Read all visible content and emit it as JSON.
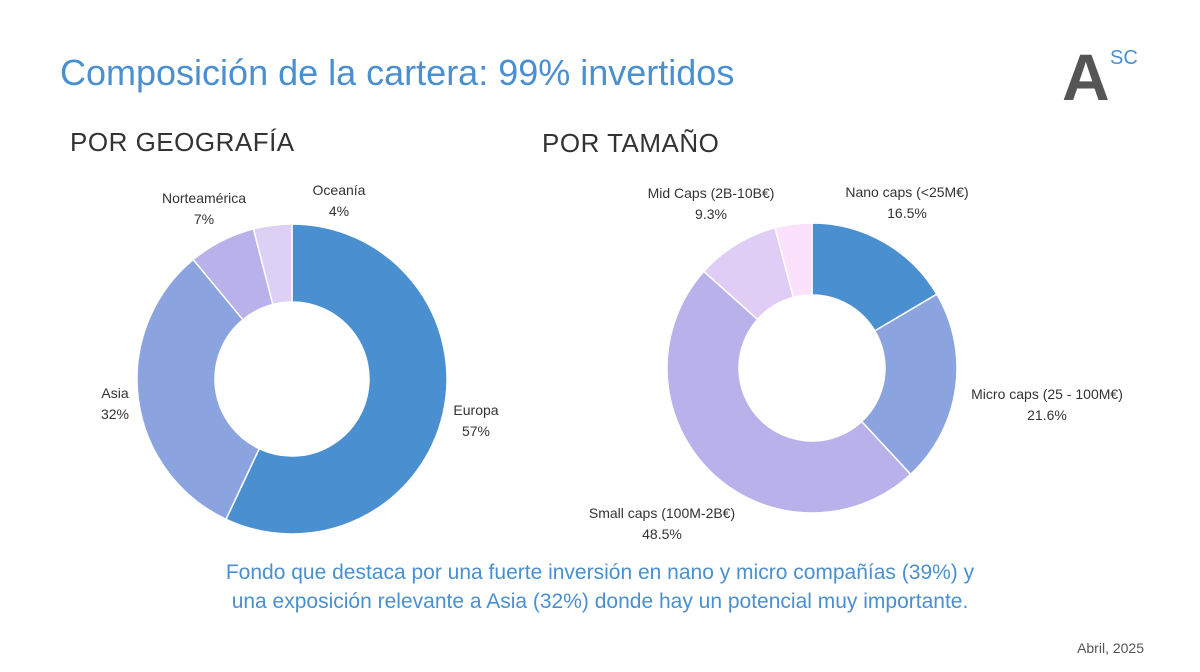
{
  "header": {
    "title": "Composición de la cartera: 99% invertidos",
    "logo_text": "A",
    "logo_sup": "SC"
  },
  "geography": {
    "heading": "POR GEOGRAFÍA"
  },
  "size": {
    "heading": "POR TAMAÑO"
  },
  "chart_data": [
    {
      "type": "pie",
      "variant": "donut",
      "title": "POR GEOGRAFÍA",
      "slices": [
        {
          "label": "Europa",
          "value": 57,
          "value_text": "57%",
          "color": "#4a8fd0"
        },
        {
          "label": "Asia",
          "value": 32,
          "value_text": "32%",
          "color": "#8ba4e0"
        },
        {
          "label": "Norteamérica",
          "value": 7,
          "value_text": "7%",
          "color": "#b8b1ea"
        },
        {
          "label": "Oceanía",
          "value": 4,
          "value_text": "4%",
          "color": "#ddd0f5"
        }
      ]
    },
    {
      "type": "pie",
      "variant": "donut",
      "title": "POR TAMAÑO",
      "slices": [
        {
          "label": "Nano caps (<25M€)",
          "value": 16.5,
          "value_text": "16.5%",
          "color": "#4a8fd0"
        },
        {
          "label": "Micro caps (25 - 100M€)",
          "value": 21.6,
          "value_text": "21.6%",
          "color": "#8ba4e0"
        },
        {
          "label": "Small caps (100M-2B€)",
          "value": 48.5,
          "value_text": "48.5%",
          "color": "#b8b1ea"
        },
        {
          "label": "Mid Caps (2B-10B€)",
          "value": 9.3,
          "value_text": "9.3%",
          "color": "#e0cdf5"
        },
        {
          "label": "",
          "value": 4.1,
          "value_text": "",
          "color": "#fbe1fb"
        }
      ]
    }
  ],
  "footer": {
    "line1": "Fondo que destaca por una fuerte inversión en nano y micro compañías (39%) y",
    "line2": "una exposición relevante a Asia (32%) donde hay un potencial muy importante.",
    "date": "Abril, 2025"
  }
}
